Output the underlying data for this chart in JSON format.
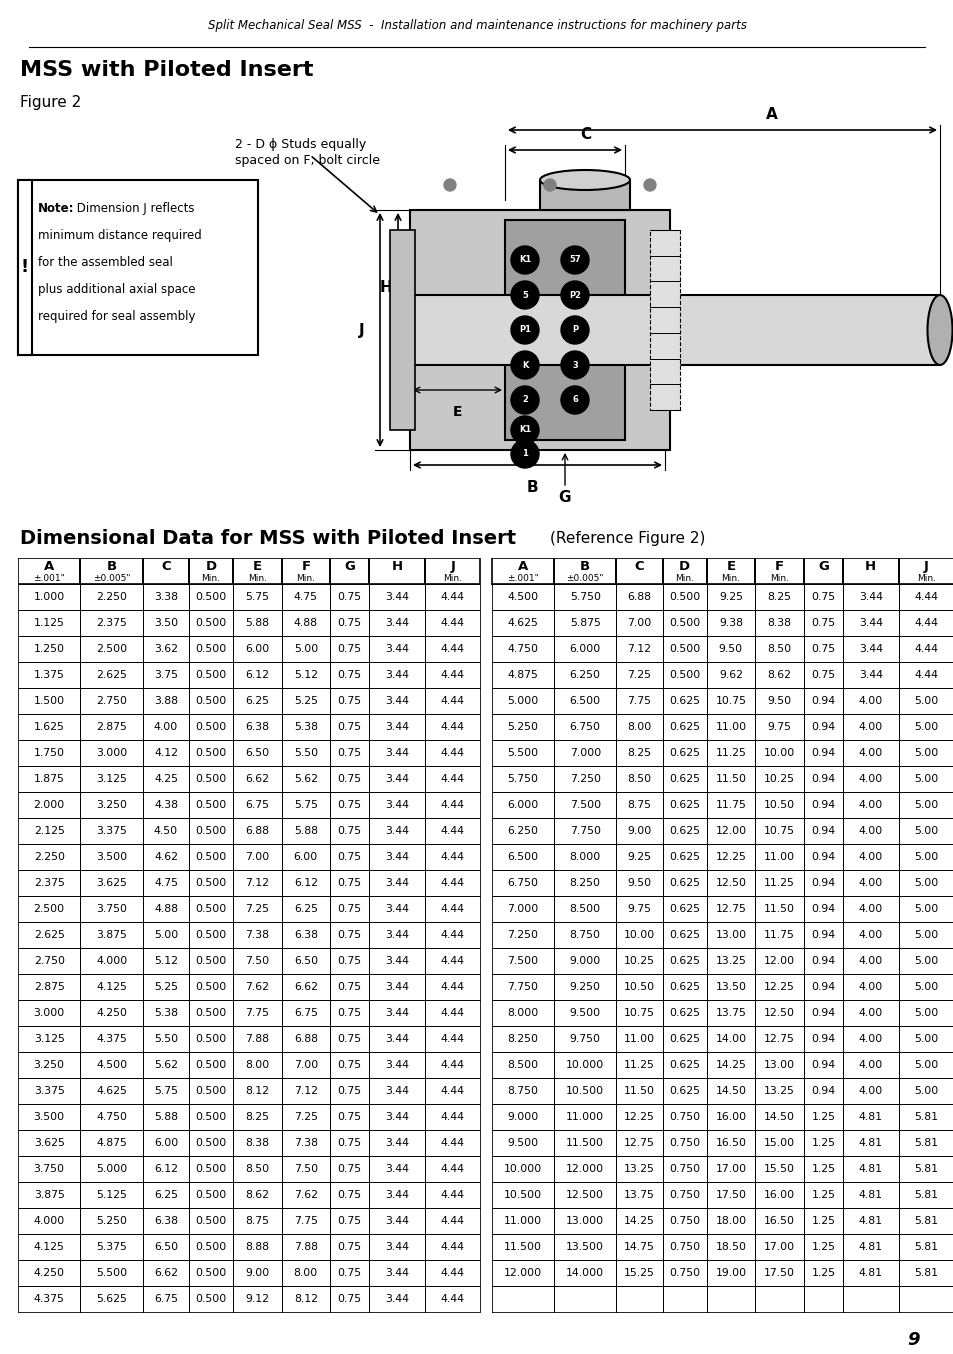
{
  "header_text": "Split Mechanical Seal MSS  -  Installation and maintenance instructions for machinery parts",
  "title": "MSS with Piloted Insert",
  "figure_label": "Figure 2",
  "note_symbol": "!",
  "note_bold": "Note:",
  "note_text": " Dimension J reflects\nminimum distance required\nfor the assembled seal\nplus additional axial space\nrequired for seal assembly",
  "annotation_text": "2 - D ϕ Studs equally\nspaced on F, bolt circle",
  "table_title": "Dimensional Data for MSS with Piloted Insert",
  "table_subtitle": "(Reference Figure 2)",
  "col_headers": [
    "A",
    "B",
    "C",
    "D",
    "E",
    "F",
    "G",
    "H",
    "J"
  ],
  "col_subheaders": [
    "±.001\"",
    "±0.005\"",
    "",
    "Min.",
    "Min.",
    "Min.",
    "",
    "",
    "Min."
  ],
  "left_data": [
    [
      1.0,
      2.25,
      3.38,
      0.5,
      5.75,
      4.75,
      0.75,
      3.44,
      4.44
    ],
    [
      1.125,
      2.375,
      3.5,
      0.5,
      5.88,
      4.88,
      0.75,
      3.44,
      4.44
    ],
    [
      1.25,
      2.5,
      3.62,
      0.5,
      6.0,
      5.0,
      0.75,
      3.44,
      4.44
    ],
    [
      1.375,
      2.625,
      3.75,
      0.5,
      6.12,
      5.12,
      0.75,
      3.44,
      4.44
    ],
    [
      1.5,
      2.75,
      3.88,
      0.5,
      6.25,
      5.25,
      0.75,
      3.44,
      4.44
    ],
    [
      1.625,
      2.875,
      4.0,
      0.5,
      6.38,
      5.38,
      0.75,
      3.44,
      4.44
    ],
    [
      1.75,
      3.0,
      4.12,
      0.5,
      6.5,
      5.5,
      0.75,
      3.44,
      4.44
    ],
    [
      1.875,
      3.125,
      4.25,
      0.5,
      6.62,
      5.62,
      0.75,
      3.44,
      4.44
    ],
    [
      2.0,
      3.25,
      4.38,
      0.5,
      6.75,
      5.75,
      0.75,
      3.44,
      4.44
    ],
    [
      2.125,
      3.375,
      4.5,
      0.5,
      6.88,
      5.88,
      0.75,
      3.44,
      4.44
    ],
    [
      2.25,
      3.5,
      4.62,
      0.5,
      7.0,
      6.0,
      0.75,
      3.44,
      4.44
    ],
    [
      2.375,
      3.625,
      4.75,
      0.5,
      7.12,
      6.12,
      0.75,
      3.44,
      4.44
    ],
    [
      2.5,
      3.75,
      4.88,
      0.5,
      7.25,
      6.25,
      0.75,
      3.44,
      4.44
    ],
    [
      2.625,
      3.875,
      5.0,
      0.5,
      7.38,
      6.38,
      0.75,
      3.44,
      4.44
    ],
    [
      2.75,
      4.0,
      5.12,
      0.5,
      7.5,
      6.5,
      0.75,
      3.44,
      4.44
    ],
    [
      2.875,
      4.125,
      5.25,
      0.5,
      7.62,
      6.62,
      0.75,
      3.44,
      4.44
    ],
    [
      3.0,
      4.25,
      5.38,
      0.5,
      7.75,
      6.75,
      0.75,
      3.44,
      4.44
    ],
    [
      3.125,
      4.375,
      5.5,
      0.5,
      7.88,
      6.88,
      0.75,
      3.44,
      4.44
    ],
    [
      3.25,
      4.5,
      5.62,
      0.5,
      8.0,
      7.0,
      0.75,
      3.44,
      4.44
    ],
    [
      3.375,
      4.625,
      5.75,
      0.5,
      8.12,
      7.12,
      0.75,
      3.44,
      4.44
    ],
    [
      3.5,
      4.75,
      5.88,
      0.5,
      8.25,
      7.25,
      0.75,
      3.44,
      4.44
    ],
    [
      3.625,
      4.875,
      6.0,
      0.5,
      8.38,
      7.38,
      0.75,
      3.44,
      4.44
    ],
    [
      3.75,
      5.0,
      6.12,
      0.5,
      8.5,
      7.5,
      0.75,
      3.44,
      4.44
    ],
    [
      3.875,
      5.125,
      6.25,
      0.5,
      8.62,
      7.62,
      0.75,
      3.44,
      4.44
    ],
    [
      4.0,
      5.25,
      6.38,
      0.5,
      8.75,
      7.75,
      0.75,
      3.44,
      4.44
    ],
    [
      4.125,
      5.375,
      6.5,
      0.5,
      8.88,
      7.88,
      0.75,
      3.44,
      4.44
    ],
    [
      4.25,
      5.5,
      6.62,
      0.5,
      9.0,
      8.0,
      0.75,
      3.44,
      4.44
    ],
    [
      4.375,
      5.625,
      6.75,
      0.5,
      9.12,
      8.12,
      0.75,
      3.44,
      4.44
    ]
  ],
  "right_data": [
    [
      4.5,
      5.75,
      6.88,
      0.5,
      9.25,
      8.25,
      0.75,
      3.44,
      4.44
    ],
    [
      4.625,
      5.875,
      7.0,
      0.5,
      9.38,
      8.38,
      0.75,
      3.44,
      4.44
    ],
    [
      4.75,
      6.0,
      7.12,
      0.5,
      9.5,
      8.5,
      0.75,
      3.44,
      4.44
    ],
    [
      4.875,
      6.25,
      7.25,
      0.5,
      9.62,
      8.62,
      0.75,
      3.44,
      4.44
    ],
    [
      5.0,
      6.5,
      7.75,
      0.625,
      10.75,
      9.5,
      0.94,
      4.0,
      5.0
    ],
    [
      5.25,
      6.75,
      8.0,
      0.625,
      11.0,
      9.75,
      0.94,
      4.0,
      5.0
    ],
    [
      5.5,
      7.0,
      8.25,
      0.625,
      11.25,
      10.0,
      0.94,
      4.0,
      5.0
    ],
    [
      5.75,
      7.25,
      8.5,
      0.625,
      11.5,
      10.25,
      0.94,
      4.0,
      5.0
    ],
    [
      6.0,
      7.5,
      8.75,
      0.625,
      11.75,
      10.5,
      0.94,
      4.0,
      5.0
    ],
    [
      6.25,
      7.75,
      9.0,
      0.625,
      12.0,
      10.75,
      0.94,
      4.0,
      5.0
    ],
    [
      6.5,
      8.0,
      9.25,
      0.625,
      12.25,
      11.0,
      0.94,
      4.0,
      5.0
    ],
    [
      6.75,
      8.25,
      9.5,
      0.625,
      12.5,
      11.25,
      0.94,
      4.0,
      5.0
    ],
    [
      7.0,
      8.5,
      9.75,
      0.625,
      12.75,
      11.5,
      0.94,
      4.0,
      5.0
    ],
    [
      7.25,
      8.75,
      10.0,
      0.625,
      13.0,
      11.75,
      0.94,
      4.0,
      5.0
    ],
    [
      7.5,
      9.0,
      10.25,
      0.625,
      13.25,
      12.0,
      0.94,
      4.0,
      5.0
    ],
    [
      7.75,
      9.25,
      10.5,
      0.625,
      13.5,
      12.25,
      0.94,
      4.0,
      5.0
    ],
    [
      8.0,
      9.5,
      10.75,
      0.625,
      13.75,
      12.5,
      0.94,
      4.0,
      5.0
    ],
    [
      8.25,
      9.75,
      11.0,
      0.625,
      14.0,
      12.75,
      0.94,
      4.0,
      5.0
    ],
    [
      8.5,
      10.0,
      11.25,
      0.625,
      14.25,
      13.0,
      0.94,
      4.0,
      5.0
    ],
    [
      8.75,
      10.5,
      11.5,
      0.625,
      14.5,
      13.25,
      0.94,
      4.0,
      5.0
    ],
    [
      9.0,
      11.0,
      12.25,
      0.75,
      16.0,
      14.5,
      1.25,
      4.81,
      5.81
    ],
    [
      9.5,
      11.5,
      12.75,
      0.75,
      16.5,
      15.0,
      1.25,
      4.81,
      5.81
    ],
    [
      10.0,
      12.0,
      13.25,
      0.75,
      17.0,
      15.5,
      1.25,
      4.81,
      5.81
    ],
    [
      10.5,
      12.5,
      13.75,
      0.75,
      17.5,
      16.0,
      1.25,
      4.81,
      5.81
    ],
    [
      11.0,
      13.0,
      14.25,
      0.75,
      18.0,
      16.5,
      1.25,
      4.81,
      5.81
    ],
    [
      11.5,
      13.5,
      14.75,
      0.75,
      18.5,
      17.0,
      1.25,
      4.81,
      5.81
    ],
    [
      12.0,
      14.0,
      15.25,
      0.75,
      19.0,
      17.5,
      1.25,
      4.81,
      5.81
    ],
    null
  ],
  "page_number": "9",
  "bg_color": "#ffffff"
}
